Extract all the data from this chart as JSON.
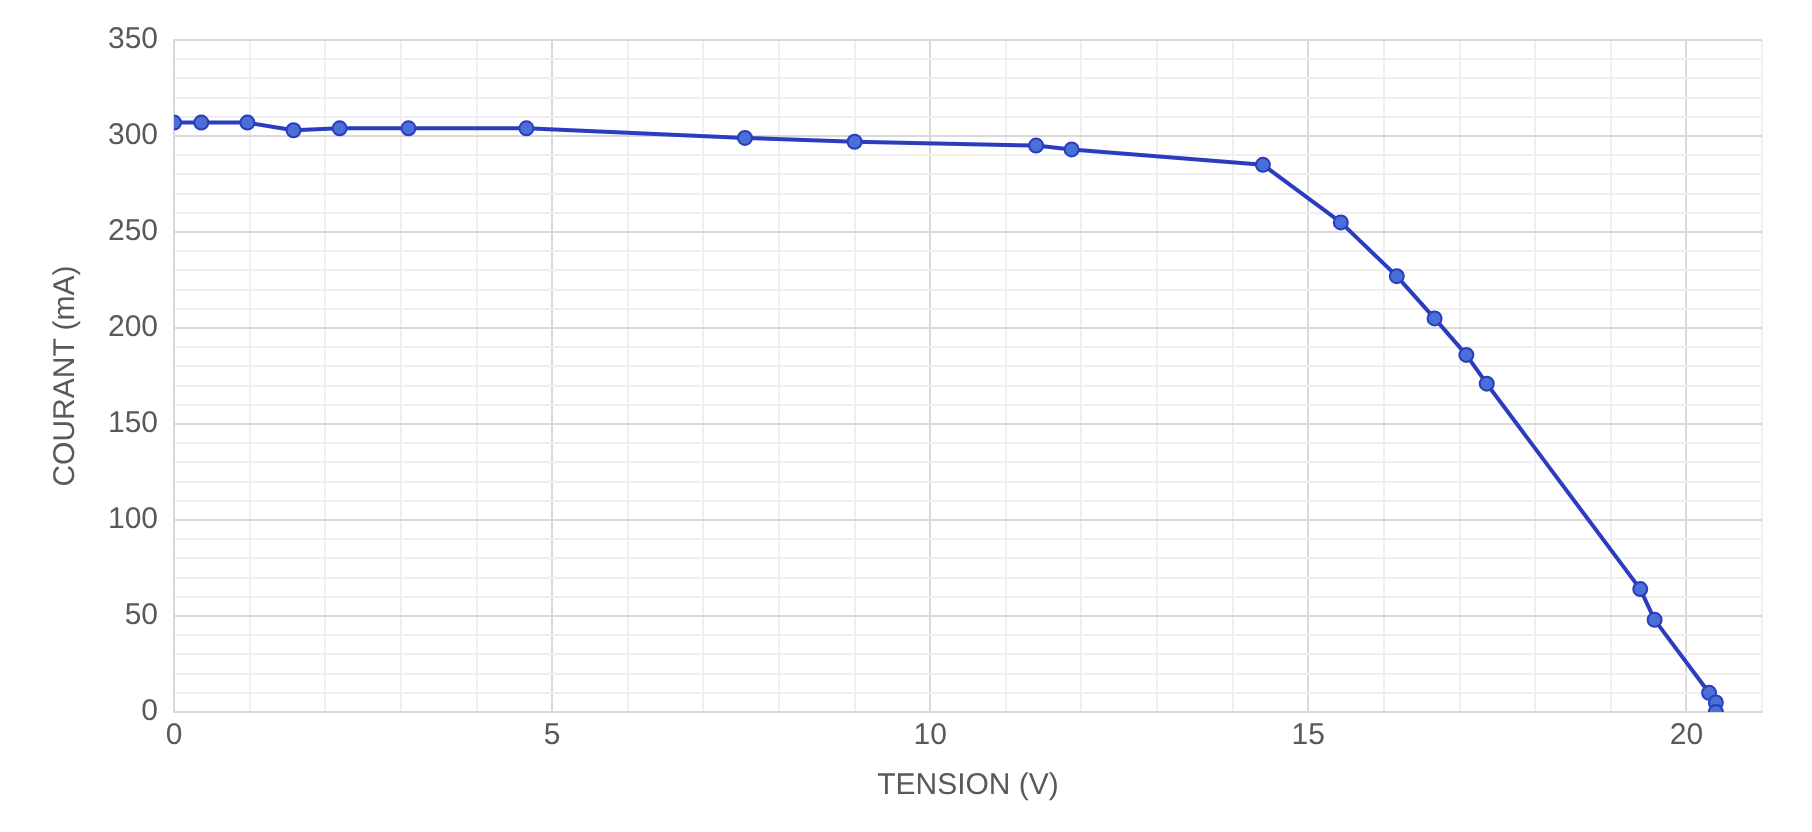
{
  "chart_data": {
    "type": "line",
    "xlabel": "TENSION (V)",
    "ylabel": "COURANT (mA)",
    "x": [
      0,
      0.36,
      0.97,
      1.58,
      2.19,
      3.1,
      4.66,
      7.55,
      9.0,
      11.4,
      11.87,
      14.4,
      15.43,
      16.17,
      16.67,
      17.09,
      17.36,
      19.39,
      19.58,
      20.3,
      20.39,
      20.39
    ],
    "series": [
      {
        "color": "#2a3cc0",
        "values": [
          307,
          307,
          307,
          303,
          304,
          304,
          304,
          299,
          297,
          295,
          293,
          285,
          255,
          227,
          205,
          186,
          171,
          64,
          48,
          10,
          5,
          0
        ]
      }
    ],
    "xlim": [
      0,
      21
    ],
    "xticks": [
      0,
      {
        "value": 1,
        "label": null
      },
      {
        "value": 2,
        "label": null
      },
      {
        "value": 3,
        "label": null
      },
      {
        "value": 4,
        "label": null
      },
      5,
      {
        "value": 6,
        "label": null
      },
      {
        "value": 7,
        "label": null
      },
      {
        "value": 8,
        "label": null
      },
      {
        "value": 9,
        "label": null
      },
      10,
      {
        "value": 11,
        "label": null
      },
      {
        "value": 12,
        "label": null
      },
      {
        "value": 13,
        "label": null
      },
      {
        "value": 14,
        "label": null
      },
      15,
      {
        "value": 16,
        "label": null
      },
      {
        "value": 17,
        "label": null
      },
      {
        "value": 18,
        "label": null
      },
      {
        "value": 19,
        "label": null
      },
      20,
      {
        "value": 21,
        "label": null
      }
    ],
    "ylim": [
      0,
      350
    ],
    "yticks": [
      0,
      {
        "value": 10,
        "label": null
      },
      {
        "value": 20,
        "label": null
      },
      {
        "value": 30,
        "label": null
      },
      {
        "value": 40,
        "label": null
      },
      50,
      {
        "value": 60,
        "label": null
      },
      {
        "value": 70,
        "label": null
      },
      {
        "value": 80,
        "label": null
      },
      {
        "value": 90,
        "label": null
      },
      100,
      {
        "value": 110,
        "label": null
      },
      {
        "value": 120,
        "label": null
      },
      {
        "value": 130,
        "label": null
      },
      {
        "value": 140,
        "label": null
      },
      150,
      {
        "value": 160,
        "label": null
      },
      {
        "value": 170,
        "label": null
      },
      {
        "value": 180,
        "label": null
      },
      {
        "value": 190,
        "label": null
      },
      200,
      {
        "value": 210,
        "label": null
      },
      {
        "value": 220,
        "label": null
      },
      {
        "value": 230,
        "label": null
      },
      {
        "value": 240,
        "label": null
      },
      250,
      {
        "value": 260,
        "label": null
      },
      {
        "value": 270,
        "label": null
      },
      {
        "value": 280,
        "label": null
      },
      {
        "value": 290,
        "label": null
      },
      300,
      {
        "value": 310,
        "label": null
      },
      {
        "value": 320,
        "label": null
      },
      {
        "value": 330,
        "label": null
      },
      {
        "value": 340,
        "label": null
      },
      350
    ],
    "grid": true,
    "marker": "circle",
    "line_style": "solid",
    "legend": false
  }
}
